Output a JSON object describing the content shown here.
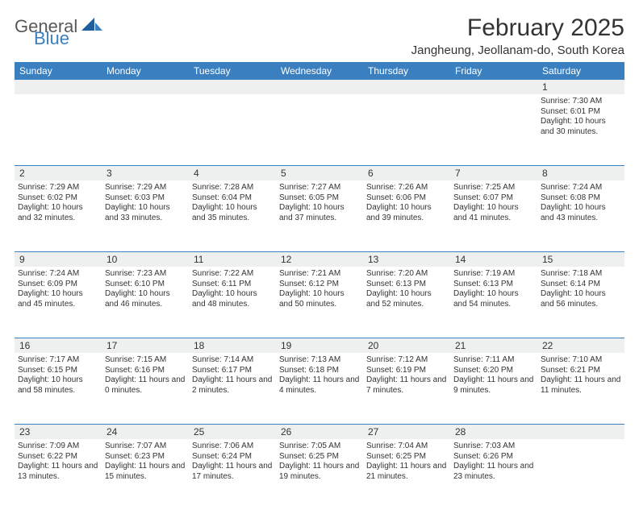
{
  "logo": {
    "general": "General",
    "blue": "Blue"
  },
  "title": "February 2025",
  "location": "Jangheung, Jeollanam-do, South Korea",
  "colors": {
    "header_bar": "#3a7fbf",
    "stripe": "#eef0f0",
    "text": "#333333",
    "logo_gray": "#595959",
    "logo_blue": "#3a7fbf"
  },
  "day_headers": [
    "Sunday",
    "Monday",
    "Tuesday",
    "Wednesday",
    "Thursday",
    "Friday",
    "Saturday"
  ],
  "weeks": [
    [
      null,
      null,
      null,
      null,
      null,
      null,
      {
        "n": "1",
        "sr": "7:30 AM",
        "ss": "6:01 PM",
        "dl": "10 hours and 30 minutes."
      }
    ],
    [
      {
        "n": "2",
        "sr": "7:29 AM",
        "ss": "6:02 PM",
        "dl": "10 hours and 32 minutes."
      },
      {
        "n": "3",
        "sr": "7:29 AM",
        "ss": "6:03 PM",
        "dl": "10 hours and 33 minutes."
      },
      {
        "n": "4",
        "sr": "7:28 AM",
        "ss": "6:04 PM",
        "dl": "10 hours and 35 minutes."
      },
      {
        "n": "5",
        "sr": "7:27 AM",
        "ss": "6:05 PM",
        "dl": "10 hours and 37 minutes."
      },
      {
        "n": "6",
        "sr": "7:26 AM",
        "ss": "6:06 PM",
        "dl": "10 hours and 39 minutes."
      },
      {
        "n": "7",
        "sr": "7:25 AM",
        "ss": "6:07 PM",
        "dl": "10 hours and 41 minutes."
      },
      {
        "n": "8",
        "sr": "7:24 AM",
        "ss": "6:08 PM",
        "dl": "10 hours and 43 minutes."
      }
    ],
    [
      {
        "n": "9",
        "sr": "7:24 AM",
        "ss": "6:09 PM",
        "dl": "10 hours and 45 minutes."
      },
      {
        "n": "10",
        "sr": "7:23 AM",
        "ss": "6:10 PM",
        "dl": "10 hours and 46 minutes."
      },
      {
        "n": "11",
        "sr": "7:22 AM",
        "ss": "6:11 PM",
        "dl": "10 hours and 48 minutes."
      },
      {
        "n": "12",
        "sr": "7:21 AM",
        "ss": "6:12 PM",
        "dl": "10 hours and 50 minutes."
      },
      {
        "n": "13",
        "sr": "7:20 AM",
        "ss": "6:13 PM",
        "dl": "10 hours and 52 minutes."
      },
      {
        "n": "14",
        "sr": "7:19 AM",
        "ss": "6:13 PM",
        "dl": "10 hours and 54 minutes."
      },
      {
        "n": "15",
        "sr": "7:18 AM",
        "ss": "6:14 PM",
        "dl": "10 hours and 56 minutes."
      }
    ],
    [
      {
        "n": "16",
        "sr": "7:17 AM",
        "ss": "6:15 PM",
        "dl": "10 hours and 58 minutes."
      },
      {
        "n": "17",
        "sr": "7:15 AM",
        "ss": "6:16 PM",
        "dl": "11 hours and 0 minutes."
      },
      {
        "n": "18",
        "sr": "7:14 AM",
        "ss": "6:17 PM",
        "dl": "11 hours and 2 minutes."
      },
      {
        "n": "19",
        "sr": "7:13 AM",
        "ss": "6:18 PM",
        "dl": "11 hours and 4 minutes."
      },
      {
        "n": "20",
        "sr": "7:12 AM",
        "ss": "6:19 PM",
        "dl": "11 hours and 7 minutes."
      },
      {
        "n": "21",
        "sr": "7:11 AM",
        "ss": "6:20 PM",
        "dl": "11 hours and 9 minutes."
      },
      {
        "n": "22",
        "sr": "7:10 AM",
        "ss": "6:21 PM",
        "dl": "11 hours and 11 minutes."
      }
    ],
    [
      {
        "n": "23",
        "sr": "7:09 AM",
        "ss": "6:22 PM",
        "dl": "11 hours and 13 minutes."
      },
      {
        "n": "24",
        "sr": "7:07 AM",
        "ss": "6:23 PM",
        "dl": "11 hours and 15 minutes."
      },
      {
        "n": "25",
        "sr": "7:06 AM",
        "ss": "6:24 PM",
        "dl": "11 hours and 17 minutes."
      },
      {
        "n": "26",
        "sr": "7:05 AM",
        "ss": "6:25 PM",
        "dl": "11 hours and 19 minutes."
      },
      {
        "n": "27",
        "sr": "7:04 AM",
        "ss": "6:25 PM",
        "dl": "11 hours and 21 minutes."
      },
      {
        "n": "28",
        "sr": "7:03 AM",
        "ss": "6:26 PM",
        "dl": "11 hours and 23 minutes."
      },
      null
    ]
  ],
  "labels": {
    "sunrise": "Sunrise: ",
    "sunset": "Sunset: ",
    "daylight": "Daylight: "
  }
}
